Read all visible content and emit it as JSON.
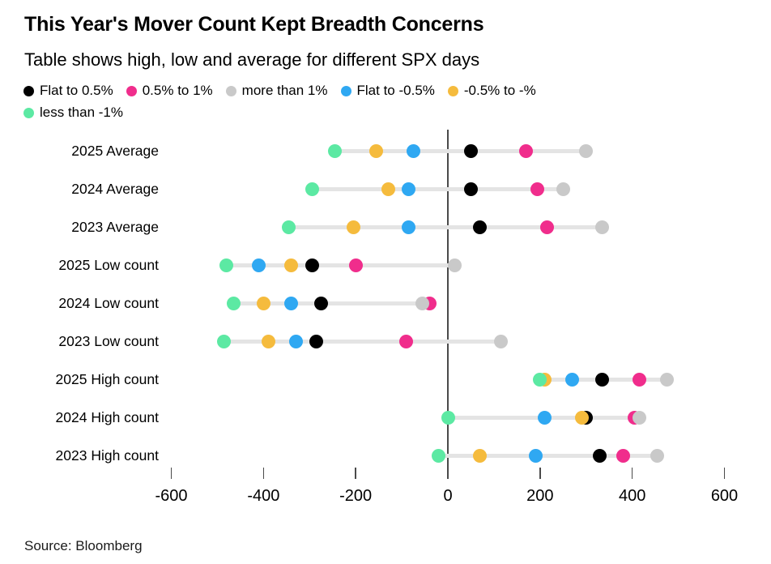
{
  "header": {
    "title": "This Year's Mover Count Kept Breadth Concerns",
    "subtitle": "Table shows high, low and average for different SPX days"
  },
  "source": "Source: Bloomberg",
  "colors": {
    "black": "#000000",
    "pink": "#f02d8c",
    "gray": "#c9c9c9",
    "blue": "#2fa8f2",
    "yellow": "#f5bb3d",
    "green": "#5ce9a3",
    "connector": "#e4e4e4",
    "zero_line": "#4a4a4a"
  },
  "chart_data": {
    "type": "scatter",
    "subtype": "horizontal-dot-plot",
    "title": "This Year's Mover Count Kept Breadth Concerns",
    "xlabel": "",
    "ylabel": "",
    "xlim": [
      -680,
      680
    ],
    "x_ticks": [
      -600,
      -400,
      -200,
      0,
      200,
      400,
      600
    ],
    "grid": false,
    "legend_position": "top",
    "categories": [
      "2025 Average",
      "2024 Average",
      "2023 Average",
      "2025 Low count",
      "2024 Low count",
      "2023 Low count",
      "2025 High count",
      "2024 High count",
      "2023 High count"
    ],
    "series": [
      {
        "name": "Flat to 0.5%",
        "color_key": "black",
        "values": [
          50,
          50,
          70,
          -295,
          -275,
          -285,
          335,
          300,
          330
        ]
      },
      {
        "name": "0.5% to 1%",
        "color_key": "pink",
        "values": [
          170,
          195,
          215,
          -200,
          -40,
          -90,
          415,
          405,
          380
        ]
      },
      {
        "name": "more than 1%",
        "color_key": "gray",
        "values": [
          300,
          250,
          335,
          15,
          -55,
          115,
          475,
          415,
          455
        ]
      },
      {
        "name": "Flat to -0.5%",
        "color_key": "blue",
        "values": [
          -75,
          -85,
          -85,
          -410,
          -340,
          -330,
          270,
          210,
          190
        ]
      },
      {
        "name": "-0.5% to -%",
        "color_key": "yellow",
        "values": [
          -155,
          -130,
          -205,
          -340,
          -400,
          -390,
          210,
          290,
          70
        ]
      },
      {
        "name": "less than -1%",
        "color_key": "green",
        "values": [
          -245,
          -295,
          -345,
          -480,
          -465,
          -485,
          200,
          0,
          -20
        ]
      }
    ]
  }
}
